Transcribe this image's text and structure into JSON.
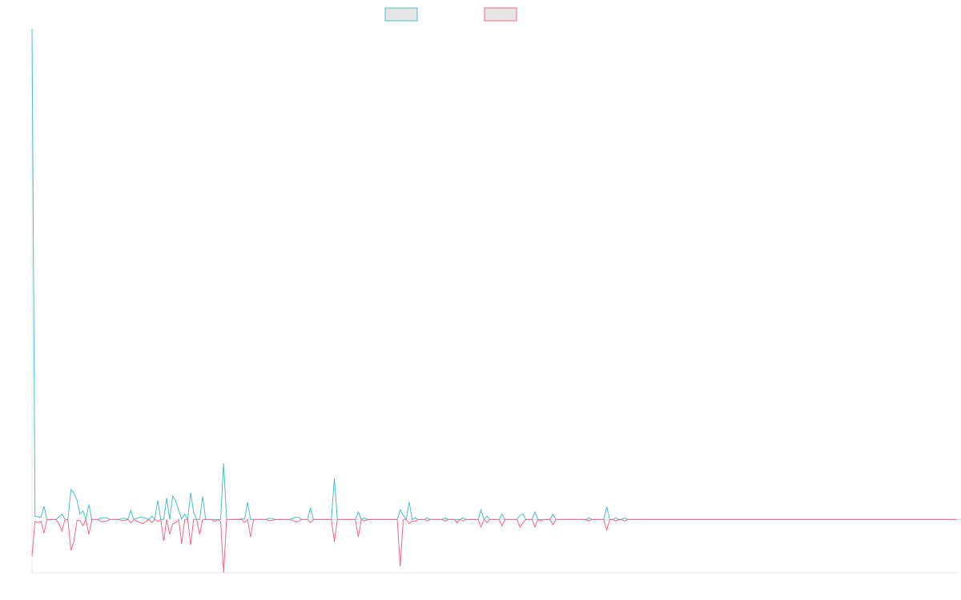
{
  "chart_data": {
    "type": "line",
    "title": "",
    "xlabel": "",
    "ylabel": "",
    "x_count": 310,
    "ylim": [
      -100,
      920
    ],
    "grid": false,
    "legend_position": "top-center",
    "series": [
      {
        "name": "",
        "color": "#4bc0c0",
        "fill": "#e5e5e5",
        "points": [
          [
            0,
            920
          ],
          [
            1,
            6
          ],
          [
            2,
            5
          ],
          [
            3,
            4
          ],
          [
            4,
            25
          ],
          [
            5,
            0
          ],
          [
            6,
            0
          ],
          [
            7,
            0
          ],
          [
            8,
            0
          ],
          [
            9,
            5
          ],
          [
            10,
            10
          ],
          [
            11,
            0
          ],
          [
            12,
            0
          ],
          [
            13,
            56
          ],
          [
            14,
            50
          ],
          [
            15,
            37
          ],
          [
            16,
            10
          ],
          [
            17,
            16
          ],
          [
            18,
            0
          ],
          [
            19,
            28
          ],
          [
            20,
            0
          ],
          [
            21,
            0
          ],
          [
            22,
            0
          ],
          [
            23,
            3
          ],
          [
            24,
            3
          ],
          [
            25,
            3
          ],
          [
            26,
            0
          ],
          [
            27,
            0
          ],
          [
            28,
            0
          ],
          [
            29,
            0
          ],
          [
            30,
            2
          ],
          [
            31,
            2
          ],
          [
            32,
            0
          ],
          [
            33,
            17
          ],
          [
            34,
            0
          ],
          [
            35,
            2
          ],
          [
            36,
            4
          ],
          [
            37,
            4
          ],
          [
            38,
            2
          ],
          [
            39,
            0
          ],
          [
            40,
            6
          ],
          [
            41,
            0
          ],
          [
            42,
            36
          ],
          [
            43,
            0
          ],
          [
            44,
            0
          ],
          [
            45,
            40
          ],
          [
            46,
            0
          ],
          [
            47,
            44
          ],
          [
            48,
            34
          ],
          [
            49,
            18
          ],
          [
            50,
            0
          ],
          [
            51,
            10
          ],
          [
            52,
            0
          ],
          [
            53,
            50
          ],
          [
            54,
            13
          ],
          [
            55,
            0
          ],
          [
            56,
            0
          ],
          [
            57,
            43
          ],
          [
            58,
            0
          ],
          [
            59,
            0
          ],
          [
            60,
            0
          ],
          [
            61,
            0
          ],
          [
            62,
            0
          ],
          [
            63,
            0
          ],
          [
            64,
            105
          ],
          [
            65,
            0
          ],
          [
            66,
            0
          ],
          [
            67,
            0
          ],
          [
            68,
            0
          ],
          [
            69,
            0
          ],
          [
            70,
            2
          ],
          [
            71,
            0
          ],
          [
            72,
            32
          ],
          [
            73,
            0
          ],
          [
            74,
            0
          ],
          [
            75,
            0
          ],
          [
            76,
            0
          ],
          [
            77,
            0
          ],
          [
            78,
            0
          ],
          [
            79,
            2
          ],
          [
            80,
            2
          ],
          [
            81,
            0
          ],
          [
            82,
            0
          ],
          [
            83,
            0
          ],
          [
            84,
            0
          ],
          [
            85,
            0
          ],
          [
            86,
            0
          ],
          [
            87,
            2
          ],
          [
            88,
            4
          ],
          [
            89,
            4
          ],
          [
            90,
            0
          ],
          [
            91,
            0
          ],
          [
            92,
            0
          ],
          [
            93,
            22
          ],
          [
            94,
            0
          ],
          [
            95,
            0
          ],
          [
            96,
            0
          ],
          [
            97,
            0
          ],
          [
            98,
            0
          ],
          [
            99,
            0
          ],
          [
            100,
            0
          ],
          [
            101,
            77
          ],
          [
            102,
            0
          ],
          [
            103,
            0
          ],
          [
            104,
            0
          ],
          [
            105,
            0
          ],
          [
            106,
            0
          ],
          [
            107,
            0
          ],
          [
            108,
            0
          ],
          [
            109,
            14
          ],
          [
            110,
            0
          ],
          [
            111,
            3
          ],
          [
            112,
            0
          ]
        ]
      },
      {
        "name": "",
        "color": "#ff6384",
        "fill": "#e5e5e5",
        "points": [
          [
            0,
            -68
          ],
          [
            1,
            -4
          ],
          [
            2,
            -6
          ],
          [
            3,
            -4
          ],
          [
            4,
            -26
          ],
          [
            5,
            0
          ],
          [
            6,
            0
          ],
          [
            7,
            0
          ],
          [
            8,
            0
          ],
          [
            9,
            -8
          ],
          [
            10,
            -22
          ],
          [
            11,
            0
          ],
          [
            12,
            0
          ],
          [
            13,
            -58
          ],
          [
            14,
            -40
          ],
          [
            15,
            -2
          ],
          [
            16,
            -2
          ],
          [
            17,
            -12
          ],
          [
            18,
            0
          ],
          [
            19,
            -28
          ],
          [
            20,
            0
          ],
          [
            21,
            0
          ],
          [
            22,
            0
          ],
          [
            23,
            -4
          ],
          [
            24,
            -4
          ],
          [
            25,
            -3
          ],
          [
            26,
            0
          ],
          [
            27,
            0
          ],
          [
            28,
            0
          ],
          [
            29,
            0
          ],
          [
            30,
            -2
          ],
          [
            31,
            -2
          ],
          [
            32,
            0
          ],
          [
            33,
            -6
          ],
          [
            34,
            0
          ],
          [
            35,
            -3
          ],
          [
            36,
            -6
          ],
          [
            37,
            -8
          ],
          [
            38,
            -4
          ],
          [
            39,
            0
          ],
          [
            40,
            -6
          ],
          [
            41,
            0
          ],
          [
            42,
            -4
          ],
          [
            43,
            0
          ],
          [
            44,
            -40
          ],
          [
            45,
            0
          ],
          [
            46,
            -28
          ],
          [
            47,
            -8
          ],
          [
            48,
            -6
          ],
          [
            49,
            0
          ],
          [
            50,
            -46
          ],
          [
            51,
            0
          ],
          [
            52,
            0
          ],
          [
            53,
            -48
          ],
          [
            54,
            0
          ],
          [
            55,
            0
          ],
          [
            56,
            -28
          ],
          [
            57,
            0
          ],
          [
            58,
            0
          ],
          [
            59,
            0
          ],
          [
            60,
            0
          ],
          [
            61,
            -4
          ],
          [
            62,
            0
          ],
          [
            63,
            -4
          ],
          [
            64,
            -100
          ],
          [
            65,
            0
          ],
          [
            66,
            0
          ],
          [
            67,
            0
          ],
          [
            68,
            0
          ],
          [
            69,
            0
          ],
          [
            70,
            0
          ],
          [
            71,
            -6
          ],
          [
            72,
            0
          ],
          [
            73,
            -33
          ],
          [
            74,
            0
          ],
          [
            75,
            0
          ],
          [
            76,
            0
          ],
          [
            77,
            0
          ],
          [
            78,
            0
          ],
          [
            79,
            -2
          ],
          [
            80,
            -2
          ],
          [
            81,
            0
          ],
          [
            82,
            0
          ],
          [
            83,
            0
          ],
          [
            84,
            0
          ],
          [
            85,
            0
          ],
          [
            86,
            0
          ],
          [
            87,
            -2
          ],
          [
            88,
            -4
          ],
          [
            89,
            -4
          ],
          [
            90,
            0
          ],
          [
            91,
            0
          ],
          [
            92,
            0
          ],
          [
            93,
            -6
          ],
          [
            94,
            0
          ],
          [
            95,
            0
          ],
          [
            96,
            0
          ],
          [
            97,
            0
          ],
          [
            98,
            0
          ],
          [
            99,
            0
          ],
          [
            100,
            0
          ],
          [
            101,
            -42
          ],
          [
            102,
            0
          ],
          [
            103,
            0
          ],
          [
            104,
            0
          ],
          [
            105,
            0
          ],
          [
            106,
            0
          ],
          [
            107,
            0
          ],
          [
            108,
            0
          ],
          [
            109,
            -33
          ],
          [
            110,
            0
          ],
          [
            111,
            -3
          ],
          [
            112,
            0
          ]
        ]
      }
    ],
    "spikes": [
      {
        "x": 120,
        "s1": 0,
        "s2": 0
      },
      {
        "x": 123,
        "s1": 18,
        "s2": -88
      },
      {
        "x": 124,
        "s1": 8,
        "s2": 0
      },
      {
        "x": 126,
        "s1": 33,
        "s2": -8
      },
      {
        "x": 127,
        "s1": 0,
        "s2": -3
      },
      {
        "x": 128,
        "s1": 3,
        "s2": -3
      },
      {
        "x": 132,
        "s1": 3,
        "s2": -3
      },
      {
        "x": 138,
        "s1": 3,
        "s2": -3
      },
      {
        "x": 142,
        "s1": 0,
        "s2": -6
      },
      {
        "x": 144,
        "s1": 3,
        "s2": -3
      },
      {
        "x": 150,
        "s1": 18,
        "s2": -14
      },
      {
        "x": 152,
        "s1": 6,
        "s2": -6
      },
      {
        "x": 157,
        "s1": 10,
        "s2": -12
      },
      {
        "x": 163,
        "s1": 8,
        "s2": -14
      },
      {
        "x": 164,
        "s1": 10,
        "s2": -6
      },
      {
        "x": 168,
        "s1": 14,
        "s2": -14
      },
      {
        "x": 170,
        "s1": 0,
        "s2": -3
      },
      {
        "x": 174,
        "s1": 10,
        "s2": -10
      },
      {
        "x": 186,
        "s1": 3,
        "s2": -3
      },
      {
        "x": 192,
        "s1": 24,
        "s2": -20
      },
      {
        "x": 195,
        "s1": 3,
        "s2": -3
      },
      {
        "x": 198,
        "s1": 3,
        "s2": -3
      }
    ]
  }
}
